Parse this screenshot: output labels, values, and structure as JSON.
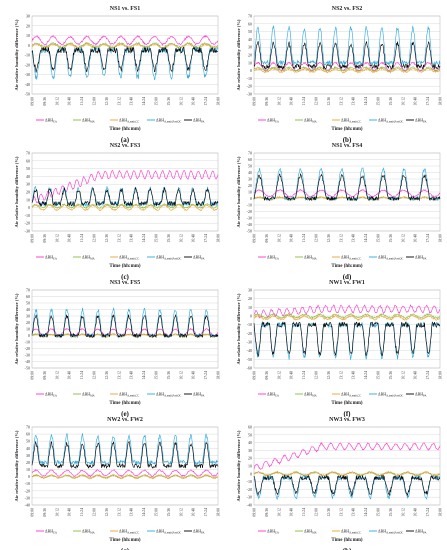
{
  "figure": {
    "shared_ylabel": "Air relative humidity difference (%)",
    "shared_xlabel": "Time (hh:mm)",
    "time_ticks": [
      "09:00",
      "09:36",
      "10:12",
      "10:48",
      "11:24",
      "12:00",
      "12:36",
      "13:12",
      "13:48",
      "14:24",
      "15:00",
      "15:36",
      "16:12",
      "16:48",
      "17:24",
      "18:00"
    ],
    "legend_entries": [
      {
        "label": "ΔRH",
        "subscript": "EA",
        "color": "#ff33cc"
      },
      {
        "label": "ΔRH",
        "subscript": "MA",
        "color": "#7fbf3f"
      },
      {
        "label": "ΔRH",
        "subscript": "A,emit,CC",
        "color": "#f0a030"
      },
      {
        "label": "ΔRH",
        "subscript": "A,emit,PostOC",
        "color": "#2aa7e0"
      },
      {
        "label": "ΔRH",
        "subscript": "PA",
        "color": "#000000"
      }
    ]
  },
  "chart_data": [
    {
      "type": "line",
      "panel_label": "(a)",
      "title": "NS1 vs. FS1",
      "ylim": [
        -50,
        30
      ],
      "yticks": [
        -50,
        -40,
        -30,
        -20,
        -10,
        0,
        10,
        20,
        30
      ],
      "cycles": 11,
      "series": [
        {
          "name": "ΔRH_EA",
          "color": "#ff33cc",
          "base": 5,
          "amp": 4
        },
        {
          "name": "ΔRH_MA",
          "color": "#7fbf3f",
          "base": 0,
          "amp": 2
        },
        {
          "name": "ΔRH_A,emit,CC",
          "color": "#f0a030",
          "base": -1,
          "amp": 2
        },
        {
          "name": "ΔRH_A,emit,PostOC",
          "color": "#2aa7e0",
          "base": -5,
          "amp": -28
        },
        {
          "name": "ΔRH_PA",
          "color": "#000000",
          "base": -5,
          "amp": -20
        }
      ]
    },
    {
      "type": "line",
      "panel_label": "(b)",
      "title": "NS2 vs. FS2",
      "ylim": [
        -30,
        70
      ],
      "yticks": [
        -30,
        -20,
        -10,
        0,
        10,
        20,
        30,
        40,
        50,
        60,
        70
      ],
      "cycles": 12,
      "series": [
        {
          "name": "ΔRH_EA",
          "color": "#ff33cc",
          "base": 5,
          "amp": 5
        },
        {
          "name": "ΔRH_MA",
          "color": "#7fbf3f",
          "base": 2,
          "amp": 2
        },
        {
          "name": "ΔRH_A,emit,CC",
          "color": "#f0a030",
          "base": 0,
          "amp": 2
        },
        {
          "name": "ΔRH_A,emit,PostOC",
          "color": "#2aa7e0",
          "base": 10,
          "amp": 45
        },
        {
          "name": "ΔRH_PA",
          "color": "#000000",
          "base": 5,
          "amp": 30
        }
      ]
    },
    {
      "type": "line",
      "panel_label": "(c)",
      "title": "NS2 vs. FS3",
      "ylim": [
        -30,
        70
      ],
      "yticks": [
        -30,
        -20,
        -10,
        0,
        10,
        20,
        30,
        40,
        50,
        60,
        70
      ],
      "cycles": 13,
      "series": [
        {
          "name": "ΔRH_EA",
          "color": "#ff33cc",
          "base": 42,
          "amp": 5,
          "ramp": true
        },
        {
          "name": "ΔRH_MA",
          "color": "#7fbf3f",
          "base": 2,
          "amp": 2
        },
        {
          "name": "ΔRH_A,emit,CC",
          "color": "#f0a030",
          "base": 0,
          "amp": 3
        },
        {
          "name": "ΔRH_A,emit,PostOC",
          "color": "#2aa7e0",
          "base": 5,
          "amp": 20
        },
        {
          "name": "ΔRH_PA",
          "color": "#000000",
          "base": 5,
          "amp": 18
        }
      ]
    },
    {
      "type": "line",
      "panel_label": "(d)",
      "title": "NS1 vs. FS4",
      "ylim": [
        -50,
        70
      ],
      "yticks": [
        -50,
        -40,
        -30,
        -20,
        -10,
        0,
        10,
        20,
        30,
        40,
        50,
        60,
        70
      ],
      "cycles": 9,
      "series": [
        {
          "name": "ΔRH_EA",
          "color": "#ff33cc",
          "base": 8,
          "amp": 5
        },
        {
          "name": "ΔRH_MA",
          "color": "#7fbf3f",
          "base": 0,
          "amp": 2
        },
        {
          "name": "ΔRH_A,emit,CC",
          "color": "#f0a030",
          "base": 0,
          "amp": 2
        },
        {
          "name": "ΔRH_A,emit,PostOC",
          "color": "#2aa7e0",
          "base": 0,
          "amp": 45
        },
        {
          "name": "ΔRH_PA",
          "color": "#000000",
          "base": 0,
          "amp": 35
        }
      ]
    },
    {
      "type": "line",
      "panel_label": "(e)",
      "title": "NS3 vs. FS5",
      "ylim": [
        -50,
        70
      ],
      "yticks": [
        -50,
        -40,
        -30,
        -20,
        -10,
        0,
        10,
        20,
        30,
        40,
        50,
        60,
        70
      ],
      "cycles": 12,
      "series": [
        {
          "name": "ΔRH_EA",
          "color": "#ff33cc",
          "base": 5,
          "amp": 5
        },
        {
          "name": "ΔRH_MA",
          "color": "#7fbf3f",
          "base": 0,
          "amp": 2
        },
        {
          "name": "ΔRH_A,emit,CC",
          "color": "#f0a030",
          "base": 0,
          "amp": 2
        },
        {
          "name": "ΔRH_A,emit,PostOC",
          "color": "#2aa7e0",
          "base": 0,
          "amp": 40
        },
        {
          "name": "ΔRH_PA",
          "color": "#000000",
          "base": 0,
          "amp": 30
        }
      ]
    },
    {
      "type": "line",
      "panel_label": "(f)",
      "title": "NW1 vs. FW1",
      "ylim": [
        -60,
        30
      ],
      "yticks": [
        -60,
        -50,
        -40,
        -30,
        -20,
        -10,
        0,
        10,
        20,
        30
      ],
      "cycles": 12,
      "series": [
        {
          "name": "ΔRH_EA",
          "color": "#ff33cc",
          "base": 8,
          "amp": 4,
          "ramp": true
        },
        {
          "name": "ΔRH_MA",
          "color": "#7fbf3f",
          "base": 0,
          "amp": 2
        },
        {
          "name": "ΔRH_A,emit,CC",
          "color": "#f0a030",
          "base": -2,
          "amp": 2
        },
        {
          "name": "ΔRH_A,emit,PostOC",
          "color": "#2aa7e0",
          "base": -10,
          "amp": -38
        },
        {
          "name": "ΔRH_PA",
          "color": "#000000",
          "base": -10,
          "amp": -34
        }
      ]
    },
    {
      "type": "line",
      "panel_label": "(g)",
      "title": "NW2 vs. FW2",
      "ylim": [
        -40,
        70
      ],
      "yticks": [
        -40,
        -30,
        -20,
        -10,
        0,
        10,
        20,
        30,
        40,
        50,
        60,
        70
      ],
      "cycles": 12,
      "series": [
        {
          "name": "ΔRH_EA",
          "color": "#ff33cc",
          "base": 5,
          "amp": 4
        },
        {
          "name": "ΔRH_MA",
          "color": "#7fbf3f",
          "base": 0,
          "amp": 2
        },
        {
          "name": "ΔRH_A,emit,CC",
          "color": "#f0a030",
          "base": 0,
          "amp": 2
        },
        {
          "name": "ΔRH_A,emit,PostOC",
          "color": "#2aa7e0",
          "base": 20,
          "amp": 38
        },
        {
          "name": "ΔRH_PA",
          "color": "#000000",
          "base": 15,
          "amp": 32
        }
      ]
    },
    {
      "type": "line",
      "panel_label": "(h)",
      "title": "NW3 vs. FW3",
      "ylim": [
        -40,
        60
      ],
      "yticks": [
        -40,
        -30,
        -20,
        -10,
        0,
        10,
        20,
        30,
        40,
        50,
        60
      ],
      "cycles": 10,
      "series": [
        {
          "name": "ΔRH_EA",
          "color": "#ff33cc",
          "base": 35,
          "amp": 4,
          "ramp": true
        },
        {
          "name": "ΔRH_MA",
          "color": "#7fbf3f",
          "base": 0,
          "amp": 2
        },
        {
          "name": "ΔRH_A,emit,CC",
          "color": "#f0a030",
          "base": 0,
          "amp": 2
        },
        {
          "name": "ΔRH_A,emit,PostOC",
          "color": "#2aa7e0",
          "base": -5,
          "amp": -25
        },
        {
          "name": "ΔRH_PA",
          "color": "#000000",
          "base": -5,
          "amp": -20
        }
      ]
    }
  ]
}
